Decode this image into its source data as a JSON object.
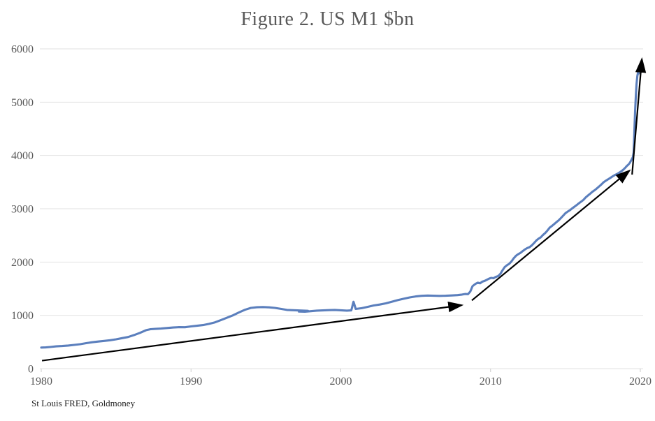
{
  "header": {
    "title": "Figure 2. US M1 $bn"
  },
  "footer": {
    "source": "St Louis FRED, Goldmoney"
  },
  "chart_data": {
    "type": "line",
    "title": "Figure 2. US M1 $bn",
    "xlabel": "",
    "ylabel": "",
    "xlim": [
      1980,
      2020
    ],
    "ylim": [
      0,
      6000
    ],
    "x_ticks": [
      1980,
      1990,
      2000,
      2010,
      2020
    ],
    "y_ticks": [
      0,
      1000,
      2000,
      3000,
      4000,
      5000,
      6000
    ],
    "grid": "horizontal",
    "legend": "none",
    "colors": {
      "line": "#5b7fbd",
      "grid": "#e2e2e2",
      "axis_text": "#595959",
      "arrow": "#000000"
    },
    "series": [
      {
        "name": "US M1 ($bn)",
        "color": "#5b7fbd",
        "points": [
          [
            1980.0,
            395
          ],
          [
            1980.3,
            398
          ],
          [
            1980.6,
            406
          ],
          [
            1981.0,
            418
          ],
          [
            1981.4,
            425
          ],
          [
            1981.8,
            433
          ],
          [
            1982.2,
            445
          ],
          [
            1982.6,
            458
          ],
          [
            1983.0,
            478
          ],
          [
            1983.4,
            495
          ],
          [
            1983.8,
            508
          ],
          [
            1984.2,
            520
          ],
          [
            1984.6,
            533
          ],
          [
            1985.0,
            550
          ],
          [
            1985.4,
            572
          ],
          [
            1985.8,
            593
          ],
          [
            1986.2,
            630
          ],
          [
            1986.6,
            672
          ],
          [
            1987.0,
            722
          ],
          [
            1987.3,
            740
          ],
          [
            1987.6,
            746
          ],
          [
            1988.0,
            752
          ],
          [
            1988.4,
            762
          ],
          [
            1988.8,
            772
          ],
          [
            1989.2,
            778
          ],
          [
            1989.6,
            777
          ],
          [
            1990.0,
            792
          ],
          [
            1990.4,
            805
          ],
          [
            1990.8,
            818
          ],
          [
            1991.2,
            840
          ],
          [
            1991.6,
            868
          ],
          [
            1992.0,
            912
          ],
          [
            1992.4,
            955
          ],
          [
            1992.8,
            1000
          ],
          [
            1993.2,
            1055
          ],
          [
            1993.6,
            1105
          ],
          [
            1994.0,
            1140
          ],
          [
            1994.4,
            1152
          ],
          [
            1994.8,
            1156
          ],
          [
            1995.2,
            1150
          ],
          [
            1995.6,
            1140
          ],
          [
            1996.0,
            1122
          ],
          [
            1996.4,
            1102
          ],
          [
            1997.8,
            1085
          ],
          [
            1997.2,
            1072
          ],
          [
            1997.6,
            1068
          ],
          [
            1998.0,
            1078
          ],
          [
            1998.4,
            1088
          ],
          [
            1998.8,
            1092
          ],
          [
            1999.2,
            1098
          ],
          [
            1999.6,
            1102
          ],
          [
            2000.0,
            1095
          ],
          [
            2000.4,
            1088
          ],
          [
            2000.7,
            1092
          ],
          [
            2000.85,
            1255
          ],
          [
            2001.0,
            1120
          ],
          [
            2001.4,
            1135
          ],
          [
            2001.8,
            1160
          ],
          [
            2002.2,
            1185
          ],
          [
            2002.6,
            1202
          ],
          [
            2003.0,
            1225
          ],
          [
            2003.4,
            1255
          ],
          [
            2003.8,
            1285
          ],
          [
            2004.2,
            1312
          ],
          [
            2004.6,
            1336
          ],
          [
            2005.0,
            1355
          ],
          [
            2005.4,
            1366
          ],
          [
            2005.8,
            1371
          ],
          [
            2006.2,
            1368
          ],
          [
            2006.6,
            1365
          ],
          [
            2007.0,
            1368
          ],
          [
            2007.4,
            1373
          ],
          [
            2007.8,
            1379
          ],
          [
            2008.1,
            1390
          ],
          [
            2008.3,
            1401
          ],
          [
            2008.5,
            1398
          ],
          [
            2008.65,
            1448
          ],
          [
            2008.8,
            1548
          ],
          [
            2009.0,
            1592
          ],
          [
            2009.15,
            1613
          ],
          [
            2009.3,
            1601
          ],
          [
            2009.45,
            1632
          ],
          [
            2009.6,
            1645
          ],
          [
            2009.75,
            1668
          ],
          [
            2009.9,
            1688
          ],
          [
            2010.05,
            1703
          ],
          [
            2010.2,
            1696
          ],
          [
            2010.35,
            1722
          ],
          [
            2010.5,
            1736
          ],
          [
            2010.65,
            1776
          ],
          [
            2010.8,
            1846
          ],
          [
            2010.95,
            1908
          ],
          [
            2011.1,
            1942
          ],
          [
            2011.25,
            1968
          ],
          [
            2011.4,
            2012
          ],
          [
            2011.55,
            2073
          ],
          [
            2011.7,
            2118
          ],
          [
            2011.85,
            2148
          ],
          [
            2012.0,
            2172
          ],
          [
            2012.15,
            2206
          ],
          [
            2012.3,
            2238
          ],
          [
            2012.45,
            2262
          ],
          [
            2012.6,
            2279
          ],
          [
            2012.75,
            2312
          ],
          [
            2012.9,
            2356
          ],
          [
            2013.05,
            2403
          ],
          [
            2013.2,
            2438
          ],
          [
            2013.35,
            2463
          ],
          [
            2013.5,
            2508
          ],
          [
            2013.65,
            2546
          ],
          [
            2013.8,
            2593
          ],
          [
            2013.95,
            2646
          ],
          [
            2014.1,
            2678
          ],
          [
            2014.25,
            2713
          ],
          [
            2014.4,
            2748
          ],
          [
            2014.55,
            2783
          ],
          [
            2014.7,
            2826
          ],
          [
            2014.85,
            2872
          ],
          [
            2015.0,
            2918
          ],
          [
            2015.15,
            2946
          ],
          [
            2015.3,
            2972
          ],
          [
            2015.45,
            3006
          ],
          [
            2015.6,
            3038
          ],
          [
            2015.75,
            3068
          ],
          [
            2015.9,
            3103
          ],
          [
            2016.05,
            3133
          ],
          [
            2016.2,
            3166
          ],
          [
            2016.35,
            3212
          ],
          [
            2016.5,
            3248
          ],
          [
            2016.65,
            3282
          ],
          [
            2016.8,
            3318
          ],
          [
            2016.95,
            3349
          ],
          [
            2017.1,
            3382
          ],
          [
            2017.25,
            3419
          ],
          [
            2017.4,
            3456
          ],
          [
            2017.55,
            3498
          ],
          [
            2017.7,
            3526
          ],
          [
            2017.85,
            3553
          ],
          [
            2018.0,
            3579
          ],
          [
            2018.15,
            3608
          ],
          [
            2018.3,
            3633
          ],
          [
            2018.45,
            3653
          ],
          [
            2018.6,
            3679
          ],
          [
            2018.75,
            3706
          ],
          [
            2018.9,
            3743
          ],
          [
            2019.0,
            3772
          ],
          [
            2019.1,
            3803
          ],
          [
            2019.2,
            3828
          ],
          [
            2019.3,
            3862
          ],
          [
            2019.4,
            3913
          ],
          [
            2019.5,
            3968
          ],
          [
            2019.55,
            4050
          ],
          [
            2019.6,
            4420
          ],
          [
            2019.65,
            4820
          ],
          [
            2019.7,
            5120
          ],
          [
            2019.75,
            5340
          ],
          [
            2019.8,
            5490
          ],
          [
            2019.85,
            5562
          ],
          [
            2019.9,
            5540
          ]
        ]
      }
    ],
    "annotations": {
      "arrow_color": "#000000",
      "arrows": [
        {
          "from": [
            1980.05,
            150
          ],
          "to": [
            2008.05,
            1190
          ]
        },
        {
          "from": [
            2008.75,
            1280
          ],
          "to": [
            2019.25,
            3710
          ]
        },
        {
          "from": [
            2019.45,
            3640
          ],
          "to": [
            2020.1,
            5800
          ]
        }
      ]
    }
  }
}
